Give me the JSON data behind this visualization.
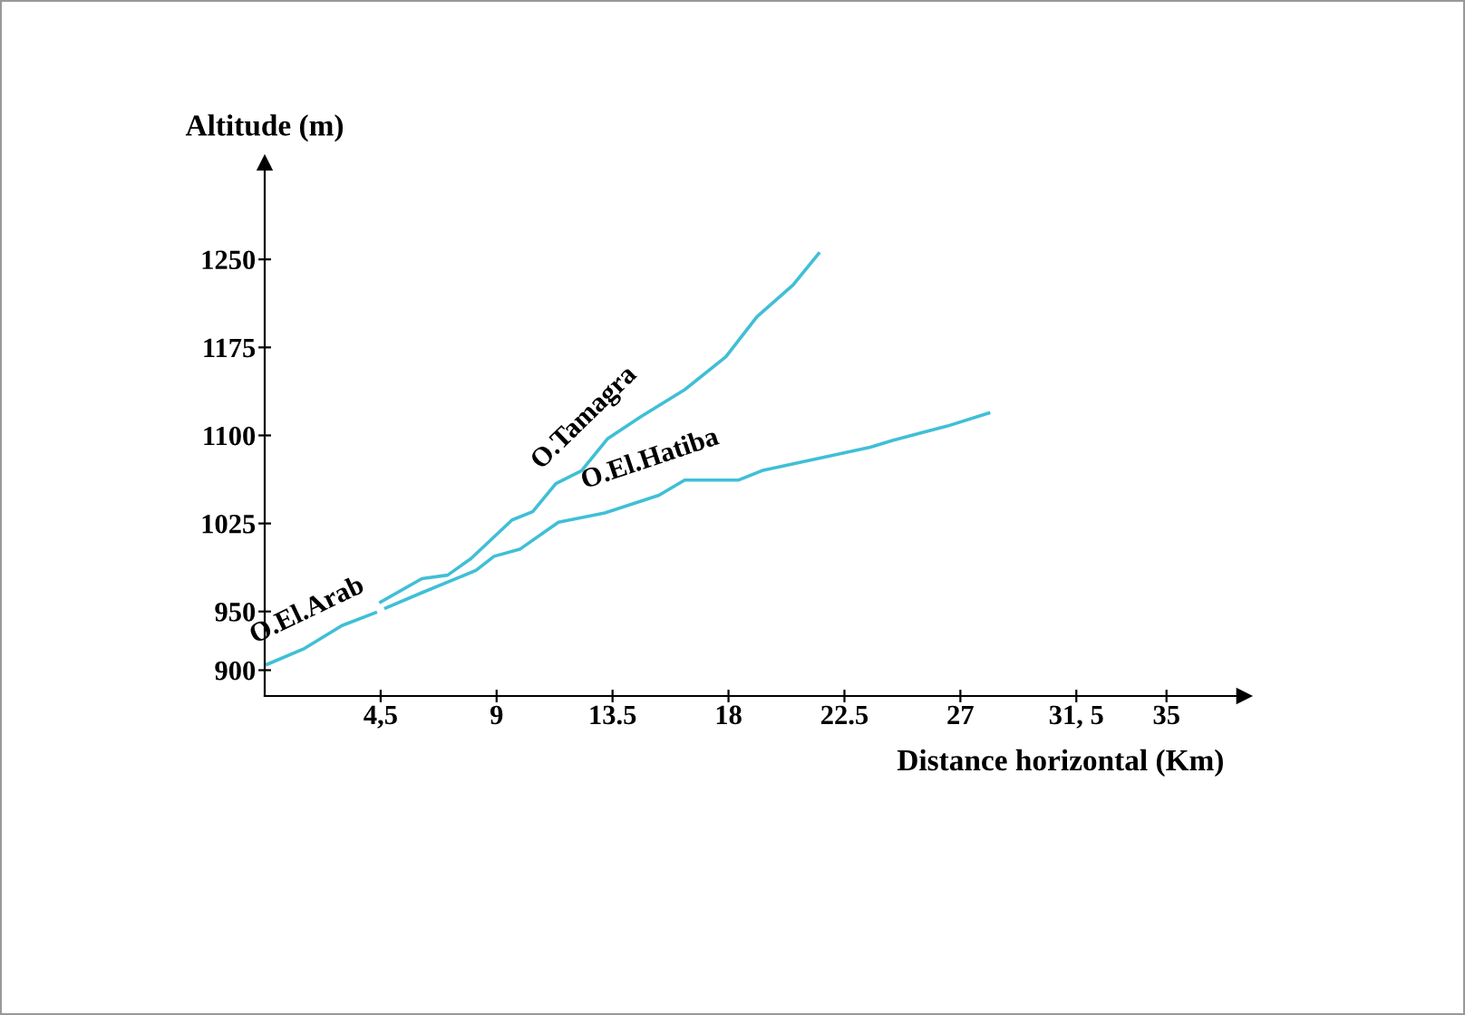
{
  "chart_data": {
    "type": "line",
    "xlabel": "Distance horizontal (Km)",
    "ylabel": "Altitude (m)",
    "xlim": [
      0,
      38
    ],
    "ylim": [
      878,
      1332
    ],
    "xticks": [
      {
        "value": 4.5,
        "label": "4,5"
      },
      9,
      13.5,
      18,
      22.5,
      27,
      {
        "value": 31.5,
        "label": "31, 5"
      },
      35
    ],
    "yticks": [
      900,
      950,
      1025,
      1100,
      1175,
      1250
    ],
    "grid": false,
    "legend": false,
    "marker": "none",
    "line_style": "solid",
    "series": [
      {
        "name": "O.El.Arab",
        "color": "#40bfd6",
        "x": [
          0.1,
          1.5,
          3.0,
          4.3
        ],
        "values": [
          905,
          918,
          938,
          949
        ]
      },
      {
        "name": "O.Tamagra",
        "color": "#40bfd6",
        "x": [
          4.5,
          6.1,
          7.1,
          8.0,
          9.6,
          10.4,
          11.3,
          12.3,
          13.3,
          14.6,
          16.3,
          17.9,
          19.1,
          20.5,
          21.5
        ],
        "values": [
          958,
          978,
          981,
          995,
          1028,
          1035,
          1059,
          1070,
          1097,
          1116,
          1139,
          1167,
          1201,
          1228,
          1255
        ]
      },
      {
        "name": "O.El.Hatiba",
        "color": "#40bfd6",
        "x": [
          4.7,
          6.1,
          8.2,
          8.9,
          9.9,
          11.4,
          13.2,
          15.3,
          16.3,
          18.4,
          19.3,
          23.5,
          24.4,
          26.5,
          28.1
        ],
        "values": [
          953,
          966,
          985,
          997,
          1003,
          1026,
          1034,
          1049,
          1062,
          1062,
          1070,
          1090,
          1096,
          1108,
          1119
        ]
      }
    ]
  }
}
